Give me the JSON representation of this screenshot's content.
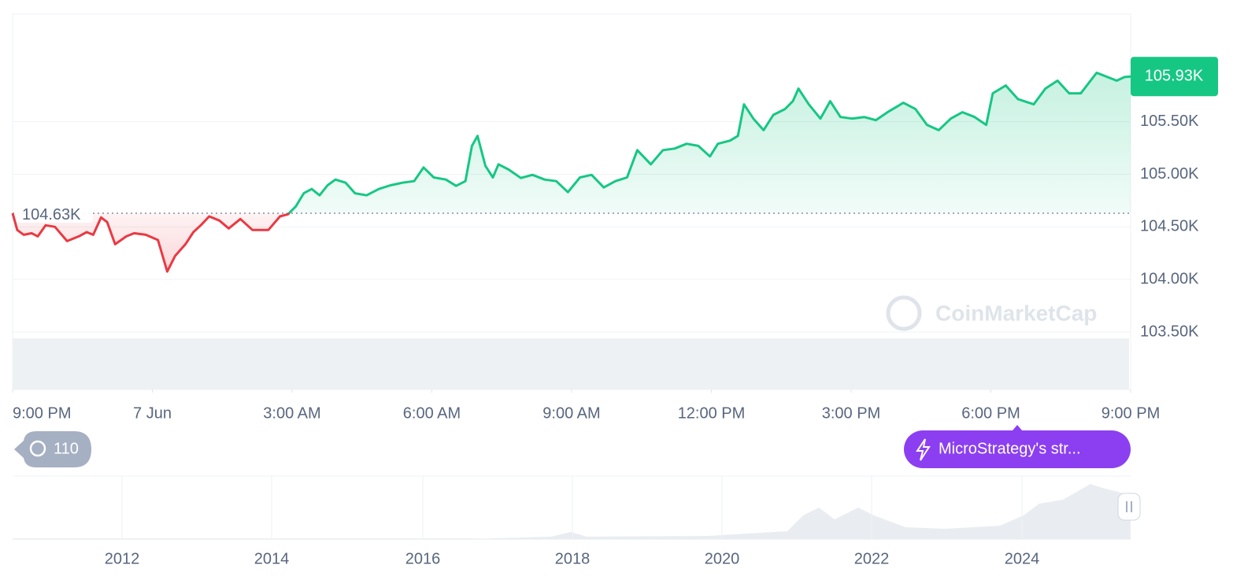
{
  "chart_data": {
    "type": "line",
    "x": [
      0,
      0.1,
      0.24,
      0.41,
      0.54,
      0.71,
      0.91,
      1.17,
      1.42,
      1.59,
      1.73,
      1.9,
      2.03,
      2.2,
      2.44,
      2.61,
      2.86,
      3.12,
      3.32,
      3.49,
      3.71,
      3.88,
      4.05,
      4.22,
      4.44,
      4.64,
      4.89,
      5.15,
      5.49,
      5.74,
      5.91,
      6.08,
      6.25,
      6.42,
      6.59,
      6.76,
      6.93,
      7.15,
      7.35,
      7.6,
      7.86,
      8.11,
      8.37,
      8.62,
      8.82,
      9.04,
      9.3,
      9.52,
      9.72,
      9.86,
      9.98,
      10.15,
      10.31,
      10.43,
      10.65,
      10.91,
      11.16,
      11.42,
      11.67,
      11.92,
      12.18,
      12.43,
      12.69,
      12.94,
      13.19,
      13.41,
      13.7,
      13.96,
      14.21,
      14.47,
      14.72,
      14.97,
      15.14,
      15.4,
      15.57,
      15.7,
      15.9,
      16.12,
      16.33,
      16.58,
      16.75,
      16.87,
      17.09,
      17.34,
      17.55,
      17.77,
      18.02,
      18.28,
      18.53,
      18.78,
      19.12,
      19.38,
      19.63,
      19.88,
      20.14,
      20.39,
      20.65,
      20.9,
      21.04,
      21.32,
      21.58,
      21.92,
      22.17,
      22.43,
      22.68,
      22.93,
      23.27,
      23.53,
      23.7,
      23.87,
      24
    ],
    "values": [
      104630,
      104470,
      104425,
      104440,
      104410,
      104515,
      104500,
      104365,
      104410,
      104450,
      104425,
      104590,
      104545,
      104335,
      104410,
      104440,
      104425,
      104375,
      104075,
      104225,
      104335,
      104450,
      104520,
      104600,
      104560,
      104485,
      104575,
      104470,
      104470,
      104600,
      104620,
      104695,
      104820,
      104860,
      104800,
      104895,
      104950,
      104920,
      104820,
      104800,
      104860,
      104895,
      104920,
      104935,
      105065,
      104970,
      104950,
      104890,
      104935,
      105270,
      105365,
      105080,
      104970,
      105095,
      105045,
      104965,
      104995,
      104950,
      104935,
      104830,
      104970,
      104995,
      104875,
      104935,
      104970,
      105230,
      105095,
      105230,
      105245,
      105290,
      105270,
      105170,
      105290,
      105320,
      105365,
      105665,
      105530,
      105420,
      105565,
      105620,
      105695,
      105815,
      105665,
      105530,
      105695,
      105545,
      105530,
      105545,
      105515,
      105590,
      105680,
      105620,
      105470,
      105420,
      105530,
      105590,
      105545,
      105470,
      105770,
      105845,
      105715,
      105665,
      105815,
      105890,
      105770,
      105770,
      105965,
      105920,
      105890,
      105925,
      105930
    ],
    "color_up": "#16c784",
    "color_down": "#ea3943",
    "xlim": [
      0,
      24
    ],
    "xticks": [
      {
        "value": 0,
        "label": "9:00 PM"
      },
      {
        "value": 3,
        "label": "7 Jun"
      },
      {
        "value": 6,
        "label": "3:00 AM"
      },
      {
        "value": 9,
        "label": "6:00 AM"
      },
      {
        "value": 12,
        "label": "9:00 AM"
      },
      {
        "value": 15,
        "label": "12:00 PM"
      },
      {
        "value": 18,
        "label": "3:00 PM"
      },
      {
        "value": 21,
        "label": "6:00 PM"
      },
      {
        "value": 24,
        "label": "9:00 PM"
      }
    ],
    "ylim": [
      103500,
      106500
    ],
    "yticks": [
      {
        "value": 103500,
        "label": "103.50K"
      },
      {
        "value": 104000,
        "label": "104.00K"
      },
      {
        "value": 104500,
        "label": "104.50K"
      },
      {
        "value": 105000,
        "label": "105.00K"
      },
      {
        "value": 105500,
        "label": "105.50K"
      }
    ],
    "grid": true,
    "baseline": {
      "value": 104630,
      "label": "104.63K"
    },
    "last_price": {
      "value": 105930,
      "label": "105.93K"
    }
  },
  "overlay": {
    "watermark": "CoinMarketCap",
    "history_badge": "110",
    "news_badge": "MicroStrategy's str...",
    "navigator_labels": [
      "2012",
      "2014",
      "2016",
      "2018",
      "2020",
      "2022",
      "2024"
    ]
  }
}
